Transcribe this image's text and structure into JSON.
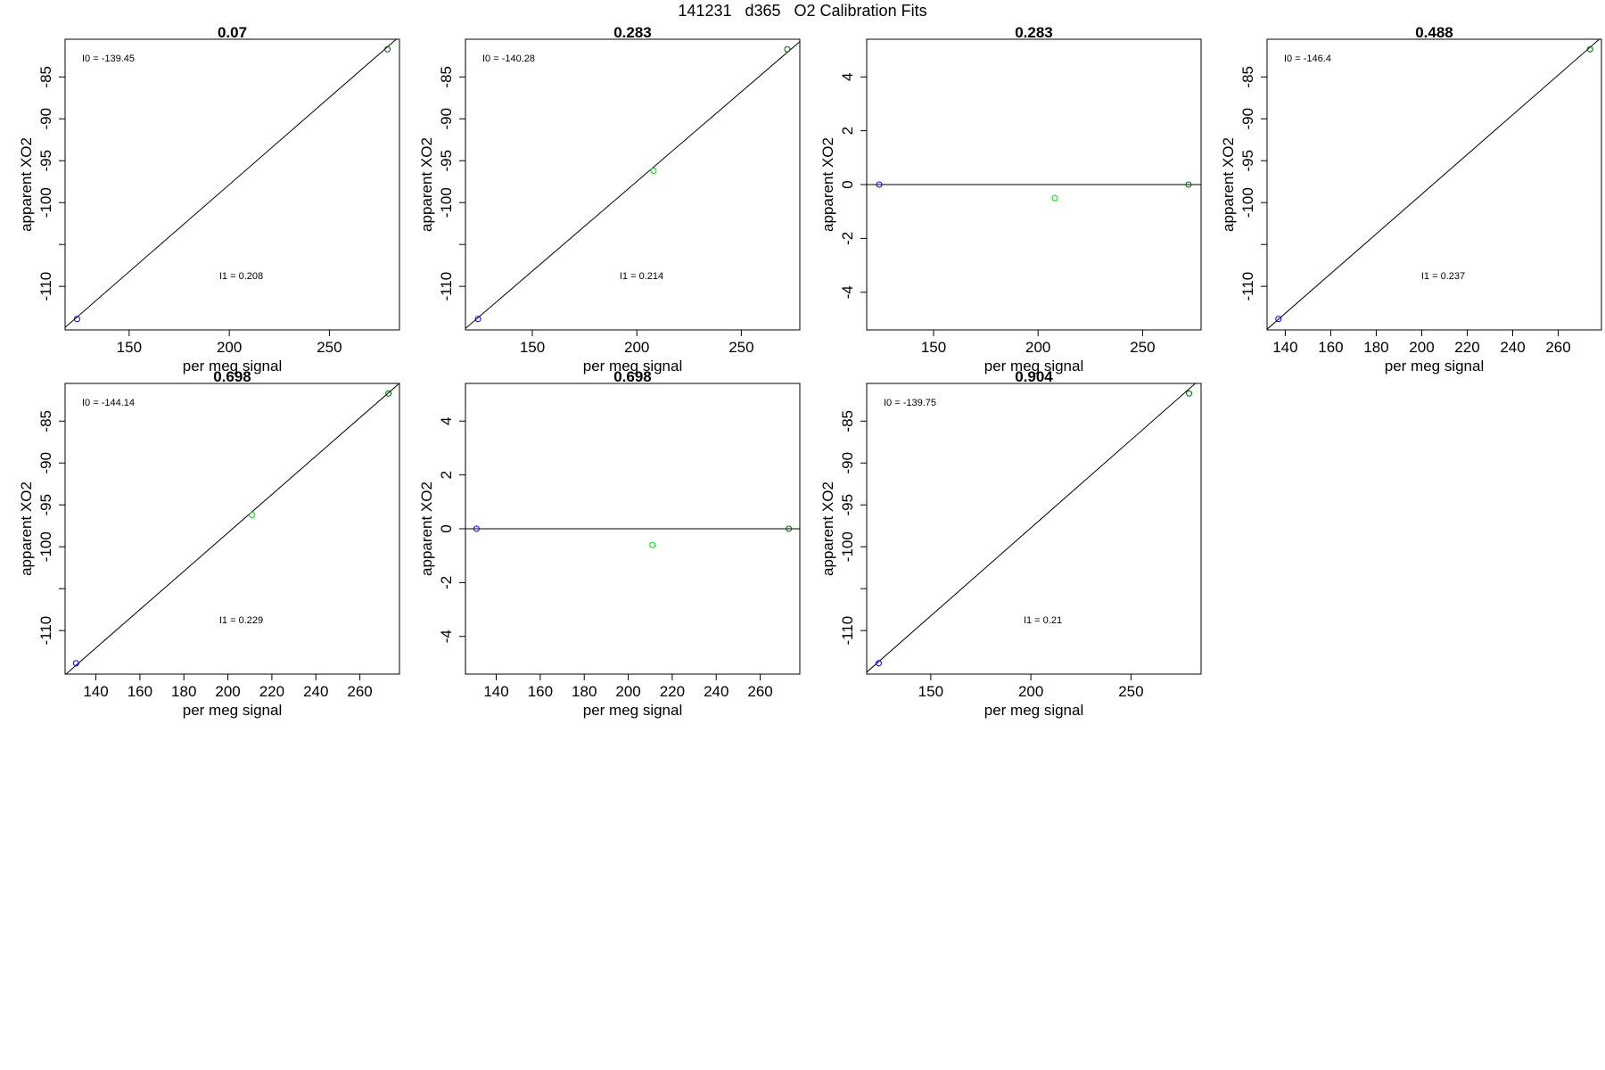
{
  "figure": {
    "title": "141231   d365   O2 Calibration Fits"
  },
  "colors": {
    "low_point": "#0000ff",
    "mid_point": "#00dd00",
    "high_point": "#006400",
    "fit_line": "#000000",
    "frame": "#000000"
  },
  "chart_data": [
    {
      "type": "scatter",
      "title": "0.07",
      "xlabel": "per meg signal",
      "ylabel": "apparent XO2",
      "xlim": [
        118,
        285
      ],
      "ylim": [
        -115.2,
        -80.5
      ],
      "xticks": [
        150,
        200,
        250
      ],
      "yticks": [
        -110,
        -105,
        -100,
        -95,
        -90,
        -85
      ],
      "ytick_labels": [
        "-110",
        "",
        "-100",
        "-95",
        "-90",
        "-85"
      ],
      "points": [
        {
          "x": 124,
          "y": -113.9,
          "role": "low"
        },
        {
          "x": 279,
          "y": -81.7,
          "role": "high"
        }
      ],
      "fit_line": {
        "intercept": -139.45,
        "slope": 0.208
      },
      "annotations": {
        "i0": "I0 =  -139.45",
        "i1": "I1 =  0.208"
      }
    },
    {
      "type": "scatter",
      "title": "0.283",
      "xlabel": "per meg signal",
      "ylabel": "apparent XO2",
      "xlim": [
        118,
        278
      ],
      "ylim": [
        -115.2,
        -80.5
      ],
      "xticks": [
        150,
        200,
        250
      ],
      "yticks": [
        -110,
        -105,
        -100,
        -95,
        -90,
        -85
      ],
      "ytick_labels": [
        "-110",
        "",
        "-100",
        "-95",
        "-90",
        "-85"
      ],
      "points": [
        {
          "x": 124,
          "y": -113.9,
          "role": "low"
        },
        {
          "x": 208,
          "y": -96.2,
          "role": "mid"
        },
        {
          "x": 272,
          "y": -81.7,
          "role": "high"
        }
      ],
      "fit_line": {
        "intercept": -140.28,
        "slope": 0.214
      },
      "annotations": {
        "i0": "I0 =  -140.28",
        "i1": "I1 =  0.214"
      }
    },
    {
      "type": "scatter",
      "title": "0.283",
      "xlabel": "per meg signal",
      "ylabel": "apparent XO2",
      "xlim": [
        118,
        278
      ],
      "ylim": [
        -5.4,
        5.4
      ],
      "xticks": [
        150,
        200,
        250
      ],
      "yticks": [
        -4,
        -2,
        0,
        2,
        4
      ],
      "ytick_labels": [
        "-4",
        "-2",
        "0",
        "2",
        "4"
      ],
      "points": [
        {
          "x": 124,
          "y": 0,
          "role": "low"
        },
        {
          "x": 208,
          "y": -0.5,
          "role": "mid"
        },
        {
          "x": 272,
          "y": 0,
          "role": "high"
        }
      ],
      "fit_line": {
        "intercept": 0,
        "slope": 0
      },
      "annotations": {
        "i0": "",
        "i1": ""
      }
    },
    {
      "type": "scatter",
      "title": "0.488",
      "xlabel": "per meg signal",
      "ylabel": "apparent XO2",
      "xlim": [
        132,
        279
      ],
      "ylim": [
        -115.2,
        -80.5
      ],
      "xticks": [
        140,
        160,
        180,
        200,
        220,
        240,
        260
      ],
      "yticks": [
        -110,
        -105,
        -100,
        -95,
        -90,
        -85
      ],
      "ytick_labels": [
        "-110",
        "",
        "-100",
        "-95",
        "-90",
        "-85"
      ],
      "points": [
        {
          "x": 137,
          "y": -113.9,
          "role": "low"
        },
        {
          "x": 274,
          "y": -81.7,
          "role": "high"
        }
      ],
      "fit_line": {
        "intercept": -146.4,
        "slope": 0.237
      },
      "annotations": {
        "i0": "I0 =  -146.4",
        "i1": "I1 =  0.237"
      }
    },
    {
      "type": "scatter",
      "title": "0.698",
      "xlabel": "per meg signal",
      "ylabel": "apparent XO2",
      "xlim": [
        126,
        278
      ],
      "ylim": [
        -115.2,
        -80.5
      ],
      "xticks": [
        140,
        160,
        180,
        200,
        220,
        240,
        260
      ],
      "yticks": [
        -110,
        -105,
        -100,
        -95,
        -90,
        -85
      ],
      "ytick_labels": [
        "-110",
        "",
        "-100",
        "-95",
        "-90",
        "-85"
      ],
      "points": [
        {
          "x": 131,
          "y": -113.9,
          "role": "low"
        },
        {
          "x": 211,
          "y": -96.2,
          "role": "mid"
        },
        {
          "x": 273,
          "y": -81.7,
          "role": "high"
        }
      ],
      "fit_line": {
        "intercept": -144.14,
        "slope": 0.229
      },
      "annotations": {
        "i0": "I0 =  -144.14",
        "i1": "I1 =  0.229"
      }
    },
    {
      "type": "scatter",
      "title": "0.698",
      "xlabel": "per meg signal",
      "ylabel": "apparent XO2",
      "xlim": [
        126,
        278
      ],
      "ylim": [
        -5.4,
        5.4
      ],
      "xticks": [
        140,
        160,
        180,
        200,
        220,
        240,
        260
      ],
      "yticks": [
        -4,
        -2,
        0,
        2,
        4
      ],
      "ytick_labels": [
        "-4",
        "-2",
        "0",
        "2",
        "4"
      ],
      "points": [
        {
          "x": 131,
          "y": 0,
          "role": "low"
        },
        {
          "x": 211,
          "y": -0.6,
          "role": "mid"
        },
        {
          "x": 273,
          "y": 0,
          "role": "high"
        }
      ],
      "fit_line": {
        "intercept": 0,
        "slope": 0
      },
      "annotations": {
        "i0": "",
        "i1": ""
      }
    },
    {
      "type": "scatter",
      "title": "0.904",
      "xlabel": "per meg signal",
      "ylabel": "apparent XO2",
      "xlim": [
        118,
        285
      ],
      "ylim": [
        -115.2,
        -80.5
      ],
      "xticks": [
        150,
        200,
        250
      ],
      "yticks": [
        -110,
        -105,
        -100,
        -95,
        -90,
        -85
      ],
      "ytick_labels": [
        "-110",
        "",
        "-100",
        "-95",
        "-90",
        "-85"
      ],
      "points": [
        {
          "x": 124,
          "y": -113.9,
          "role": "low"
        },
        {
          "x": 279,
          "y": -81.7,
          "role": "high"
        }
      ],
      "fit_line": {
        "intercept": -139.75,
        "slope": 0.21
      },
      "annotations": {
        "i0": "I0 =  -139.75",
        "i1": "I1 =  0.21"
      }
    }
  ]
}
